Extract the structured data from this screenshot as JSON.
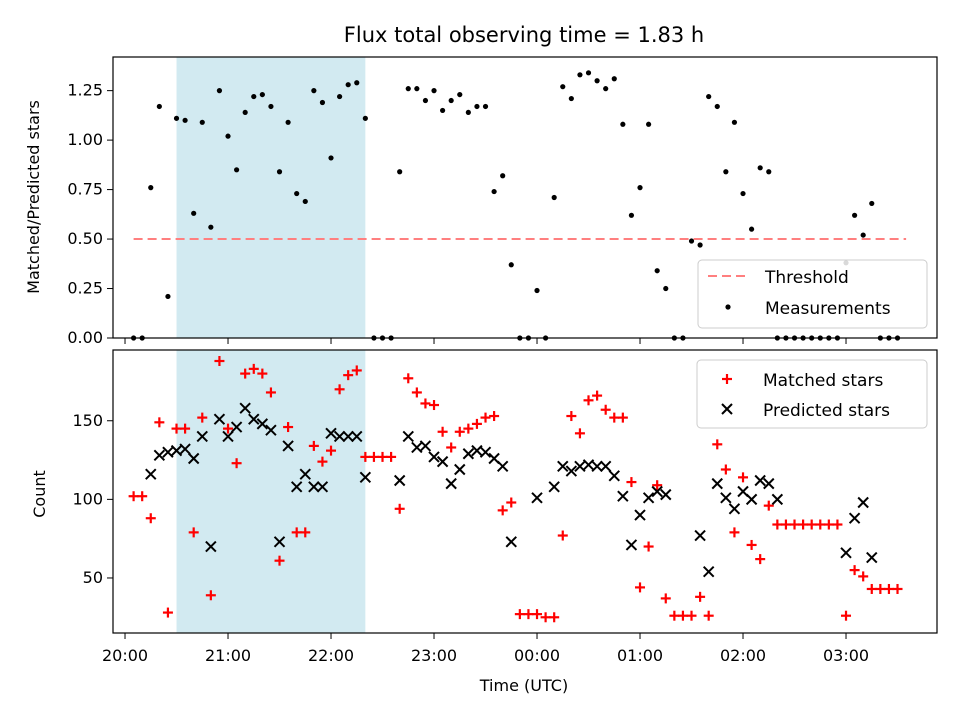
{
  "chart_data": [
    {
      "type": "scatter",
      "title": "Flux total observing time = 1.83 h",
      "xlabel": "",
      "ylabel": "Matched/Predicted stars",
      "ylim": [
        0,
        1.42
      ],
      "xlim": [
        "19:53",
        "03:53"
      ],
      "yticks": [
        "0.00",
        "0.25",
        "0.50",
        "0.75",
        "1.00",
        "1.25"
      ],
      "shaded_interval": [
        "20:30",
        "22:20"
      ],
      "shade_color": "#add8e6",
      "threshold": {
        "name": "Threshold",
        "value": 0.5,
        "color": "#ff7f7f",
        "x_range": [
          "20:05",
          "03:35"
        ]
      },
      "legend": {
        "placement": "bottom-right",
        "entries": [
          "Threshold",
          "Measurements"
        ]
      },
      "series": [
        {
          "name": "Measurements",
          "color": "#000000",
          "points": [
            [
              "20:05",
              0
            ],
            [
              "20:10",
              0
            ],
            [
              "20:15",
              0.76
            ],
            [
              "20:20",
              1.17
            ],
            [
              "20:25",
              0.21
            ],
            [
              "20:30",
              1.11
            ],
            [
              "20:35",
              1.1
            ],
            [
              "20:40",
              0.63
            ],
            [
              "20:45",
              1.09
            ],
            [
              "20:50",
              0.56
            ],
            [
              "20:55",
              1.25
            ],
            [
              "21:00",
              1.02
            ],
            [
              "21:05",
              0.85
            ],
            [
              "21:10",
              1.14
            ],
            [
              "21:15",
              1.22
            ],
            [
              "21:20",
              1.23
            ],
            [
              "21:25",
              1.17
            ],
            [
              "21:30",
              0.84
            ],
            [
              "21:35",
              1.09
            ],
            [
              "21:40",
              0.73
            ],
            [
              "21:45",
              0.69
            ],
            [
              "21:50",
              1.25
            ],
            [
              "21:55",
              1.19
            ],
            [
              "22:00",
              0.91
            ],
            [
              "22:05",
              1.22
            ],
            [
              "22:10",
              1.28
            ],
            [
              "22:15",
              1.29
            ],
            [
              "22:20",
              1.11
            ],
            [
              "22:25",
              0
            ],
            [
              "22:30",
              0
            ],
            [
              "22:35",
              0
            ],
            [
              "22:40",
              0.84
            ],
            [
              "22:45",
              1.26
            ],
            [
              "22:50",
              1.26
            ],
            [
              "22:55",
              1.2
            ],
            [
              "23:00",
              1.25
            ],
            [
              "23:05",
              1.15
            ],
            [
              "23:10",
              1.2
            ],
            [
              "23:15",
              1.23
            ],
            [
              "23:20",
              1.14
            ],
            [
              "23:25",
              1.17
            ],
            [
              "23:30",
              1.17
            ],
            [
              "23:35",
              0.74
            ],
            [
              "23:40",
              0.82
            ],
            [
              "23:45",
              0.37
            ],
            [
              "23:50",
              0
            ],
            [
              "23:55",
              0
            ],
            [
              "00:00",
              0.24
            ],
            [
              "00:05",
              0
            ],
            [
              "00:10",
              0.71
            ],
            [
              "00:15",
              1.27
            ],
            [
              "00:20",
              1.21
            ],
            [
              "00:25",
              1.33
            ],
            [
              "00:30",
              1.34
            ],
            [
              "00:35",
              1.3
            ],
            [
              "00:40",
              1.26
            ],
            [
              "00:45",
              1.31
            ],
            [
              "00:50",
              1.08
            ],
            [
              "00:55",
              0.62
            ],
            [
              "01:00",
              0.76
            ],
            [
              "01:05",
              1.08
            ],
            [
              "01:10",
              0.34
            ],
            [
              "01:15",
              0.25
            ],
            [
              "01:20",
              0
            ],
            [
              "01:25",
              0
            ],
            [
              "01:30",
              0.49
            ],
            [
              "01:35",
              0.47
            ],
            [
              "01:40",
              1.22
            ],
            [
              "01:45",
              1.17
            ],
            [
              "01:50",
              0.84
            ],
            [
              "01:55",
              1.09
            ],
            [
              "02:00",
              0.73
            ],
            [
              "02:05",
              0.55
            ],
            [
              "02:10",
              0.86
            ],
            [
              "02:15",
              0.84
            ],
            [
              "02:20",
              0
            ],
            [
              "02:25",
              0
            ],
            [
              "02:30",
              0
            ],
            [
              "02:35",
              0
            ],
            [
              "02:40",
              0
            ],
            [
              "02:45",
              0
            ],
            [
              "02:50",
              0
            ],
            [
              "02:55",
              0
            ],
            [
              "03:00",
              0.38
            ],
            [
              "03:05",
              0.62
            ],
            [
              "03:10",
              0.52
            ],
            [
              "03:15",
              0.68
            ],
            [
              "03:20",
              0
            ],
            [
              "03:25",
              0
            ],
            [
              "03:30",
              0
            ]
          ]
        }
      ]
    },
    {
      "type": "scatter",
      "title": "",
      "xlabel": "Time (UTC)",
      "ylabel": "Count",
      "ylim": [
        15,
        195
      ],
      "xlim": [
        "19:53",
        "03:53"
      ],
      "yticks": [
        "50",
        "100",
        "150"
      ],
      "xticks": [
        "20:00",
        "21:00",
        "22:00",
        "23:00",
        "00:00",
        "01:00",
        "02:00",
        "03:00"
      ],
      "shaded_interval": [
        "20:30",
        "22:20"
      ],
      "shade_color": "#add8e6",
      "legend": {
        "placement": "top-right",
        "entries": [
          "Matched stars",
          "Predicted stars"
        ]
      },
      "series": [
        {
          "name": "Matched stars",
          "marker": "+",
          "color": "#ff0000",
          "points": [
            [
              "20:05",
              102
            ],
            [
              "20:10",
              102
            ],
            [
              "20:15",
              88
            ],
            [
              "20:20",
              149
            ],
            [
              "20:25",
              28
            ],
            [
              "20:30",
              145
            ],
            [
              "20:35",
              145
            ],
            [
              "20:40",
              79
            ],
            [
              "20:45",
              152
            ],
            [
              "20:50",
              39
            ],
            [
              "20:55",
              188
            ],
            [
              "21:00",
              145
            ],
            [
              "21:05",
              123
            ],
            [
              "21:10",
              180
            ],
            [
              "21:15",
              183
            ],
            [
              "21:20",
              180
            ],
            [
              "21:25",
              168
            ],
            [
              "21:30",
              61
            ],
            [
              "21:35",
              146
            ],
            [
              "21:40",
              79
            ],
            [
              "21:45",
              79
            ],
            [
              "21:50",
              134
            ],
            [
              "21:55",
              124
            ],
            [
              "22:00",
              131
            ],
            [
              "22:05",
              170
            ],
            [
              "22:10",
              179
            ],
            [
              "22:15",
              182
            ],
            [
              "22:20",
              127
            ],
            [
              "22:25",
              127
            ],
            [
              "22:30",
              127
            ],
            [
              "22:35",
              127
            ],
            [
              "22:40",
              94
            ],
            [
              "22:45",
              177
            ],
            [
              "22:50",
              168
            ],
            [
              "22:55",
              161
            ],
            [
              "23:00",
              160
            ],
            [
              "23:05",
              143
            ],
            [
              "23:10",
              133
            ],
            [
              "23:15",
              143
            ],
            [
              "23:20",
              145
            ],
            [
              "23:25",
              148
            ],
            [
              "23:30",
              152
            ],
            [
              "23:35",
              153
            ],
            [
              "23:40",
              93
            ],
            [
              "23:45",
              98
            ],
            [
              "23:50",
              27
            ],
            [
              "23:55",
              27
            ],
            [
              "00:00",
              27
            ],
            [
              "00:05",
              25
            ],
            [
              "00:10",
              25
            ],
            [
              "00:15",
              77
            ],
            [
              "00:20",
              153
            ],
            [
              "00:25",
              142
            ],
            [
              "00:30",
              163
            ],
            [
              "00:35",
              166
            ],
            [
              "00:40",
              157
            ],
            [
              "00:45",
              152
            ],
            [
              "00:50",
              152
            ],
            [
              "00:55",
              111
            ],
            [
              "01:00",
              44
            ],
            [
              "01:05",
              70
            ],
            [
              "01:10",
              109
            ],
            [
              "01:15",
              37
            ],
            [
              "01:20",
              26
            ],
            [
              "01:25",
              26
            ],
            [
              "01:30",
              26
            ],
            [
              "01:35",
              38
            ],
            [
              "01:40",
              26
            ],
            [
              "01:45",
              135
            ],
            [
              "01:50",
              119
            ],
            [
              "01:55",
              79
            ],
            [
              "02:00",
              114
            ],
            [
              "02:05",
              71
            ],
            [
              "02:10",
              62
            ],
            [
              "02:15",
              96
            ],
            [
              "02:20",
              84
            ],
            [
              "02:25",
              84
            ],
            [
              "02:30",
              84
            ],
            [
              "02:35",
              84
            ],
            [
              "02:40",
              84
            ],
            [
              "02:45",
              84
            ],
            [
              "02:50",
              84
            ],
            [
              "02:55",
              84
            ],
            [
              "03:00",
              26
            ],
            [
              "03:05",
              55
            ],
            [
              "03:10",
              51
            ],
            [
              "03:15",
              43
            ],
            [
              "03:20",
              43
            ],
            [
              "03:25",
              43
            ],
            [
              "03:30",
              43
            ]
          ]
        },
        {
          "name": "Predicted stars",
          "marker": "x",
          "color": "#000000",
          "points": [
            [
              "20:15",
              116
            ],
            [
              "20:20",
              128
            ],
            [
              "20:25",
              130
            ],
            [
              "20:30",
              131
            ],
            [
              "20:35",
              132
            ],
            [
              "20:40",
              126
            ],
            [
              "20:45",
              140
            ],
            [
              "20:50",
              70
            ],
            [
              "20:55",
              151
            ],
            [
              "21:00",
              140
            ],
            [
              "21:05",
              146
            ],
            [
              "21:10",
              158
            ],
            [
              "21:15",
              151
            ],
            [
              "21:20",
              148
            ],
            [
              "21:25",
              144
            ],
            [
              "21:30",
              73
            ],
            [
              "21:35",
              134
            ],
            [
              "21:40",
              108
            ],
            [
              "21:45",
              116
            ],
            [
              "21:50",
              108
            ],
            [
              "21:55",
              108
            ],
            [
              "22:00",
              142
            ],
            [
              "22:05",
              140
            ],
            [
              "22:10",
              140
            ],
            [
              "22:15",
              140
            ],
            [
              "22:20",
              114
            ],
            [
              "22:40",
              112
            ],
            [
              "22:45",
              140
            ],
            [
              "22:50",
              133
            ],
            [
              "22:55",
              134
            ],
            [
              "23:00",
              127
            ],
            [
              "23:05",
              124
            ],
            [
              "23:10",
              110
            ],
            [
              "23:15",
              119
            ],
            [
              "23:20",
              129
            ],
            [
              "23:25",
              131
            ],
            [
              "23:30",
              130
            ],
            [
              "23:35",
              126
            ],
            [
              "23:40",
              121
            ],
            [
              "23:45",
              73
            ],
            [
              "00:00",
              101
            ],
            [
              "00:10",
              108
            ],
            [
              "00:15",
              121
            ],
            [
              "00:20",
              118
            ],
            [
              "00:25",
              121
            ],
            [
              "00:30",
              122
            ],
            [
              "00:35",
              121
            ],
            [
              "00:40",
              121
            ],
            [
              "00:45",
              115
            ],
            [
              "00:50",
              102
            ],
            [
              "00:55",
              71
            ],
            [
              "01:00",
              90
            ],
            [
              "01:05",
              101
            ],
            [
              "01:10",
              105
            ],
            [
              "01:15",
              103
            ],
            [
              "01:35",
              77
            ],
            [
              "01:40",
              54
            ],
            [
              "01:45",
              110
            ],
            [
              "01:50",
              101
            ],
            [
              "01:55",
              94
            ],
            [
              "02:00",
              105
            ],
            [
              "02:05",
              100
            ],
            [
              "02:10",
              112
            ],
            [
              "02:15",
              110
            ],
            [
              "02:20",
              100
            ],
            [
              "03:00",
              66
            ],
            [
              "03:05",
              88
            ],
            [
              "03:10",
              98
            ],
            [
              "03:15",
              63
            ]
          ]
        }
      ]
    }
  ]
}
